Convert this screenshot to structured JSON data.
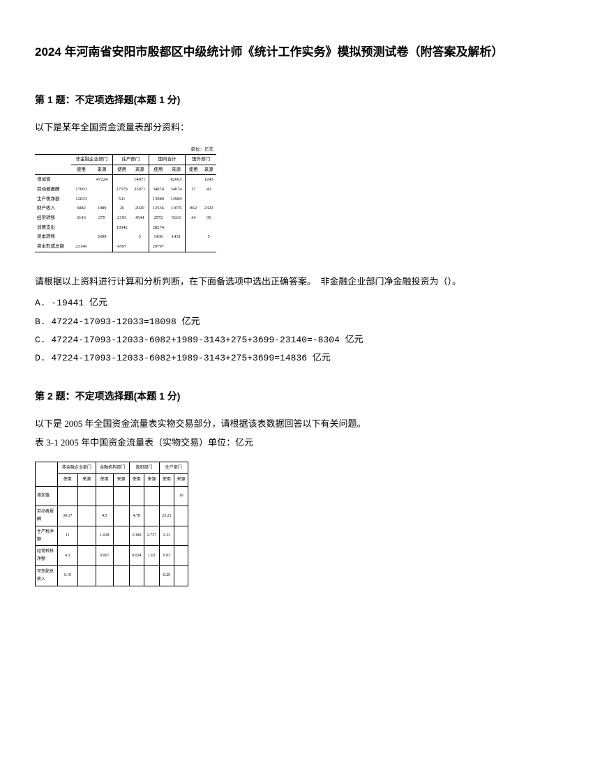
{
  "doc": {
    "title": "2024 年河南省安阳市殷都区中级统计师《统计工作实务》模拟预测试卷（附答案及解析）"
  },
  "q1": {
    "heading": "第 1 题：不定项选择题(本题 1 分)",
    "stem": "以下是某年全国资金流量表部分资料：",
    "prompt": "请根据以上资料进行计算和分析判断，在下面备选项中选出正确答案。　非金融企业部门净金融投资为（）。",
    "options": {
      "A": "A. -19441 亿元",
      "B": "B. 47224-17093-12033=18098 亿元",
      "C": "C. 47224-17093-12033-6082+1989-3143+275+3699-23140=-8304 亿元",
      "D": "D. 47224-17093-12033-6082+1989-3143+275+3699=14836 亿元"
    },
    "table": {
      "unit": "单位：亿元",
      "groups": [
        "非金融企业部门",
        "住户部门",
        "国内合计",
        "国外部门"
      ],
      "subcols": [
        "使用",
        "来源",
        "使用",
        "来源",
        "使用",
        "来源",
        "使用",
        "来源"
      ],
      "rows": [
        {
          "label": "增加值",
          "c": [
            "",
            "47224",
            "",
            "14071",
            "",
            "82663",
            "",
            "1243"
          ]
        },
        {
          "label": "劳动者报酬",
          "c": [
            "17093",
            "",
            "27579",
            "33071",
            "34074",
            "34074",
            "17",
            "43"
          ]
        },
        {
          "label": "生产税净额",
          "c": [
            "12033",
            "",
            "531",
            "",
            "13989",
            "13989",
            "",
            ""
          ]
        },
        {
          "label": "财产收入",
          "c": [
            "6082",
            "1989",
            "26",
            "2020",
            "12536",
            "11076",
            "862",
            "2322"
          ]
        },
        {
          "label": "经常转移",
          "c": [
            "3143",
            "275",
            "2193",
            "4544",
            "2572",
            "5163",
            "44",
            "35"
          ]
        },
        {
          "label": "消费支出",
          "c": [
            "",
            "",
            "18342",
            "",
            "28274",
            "",
            "",
            ""
          ]
        },
        {
          "label": "资本转移",
          "c": [
            "",
            "3699",
            "",
            "5",
            "1436",
            "1431",
            "",
            "5"
          ]
        },
        {
          "label": "资本形成总额",
          "c": [
            "23140",
            "",
            "4597",
            "",
            "29797",
            "",
            "",
            ""
          ]
        }
      ]
    }
  },
  "q2": {
    "heading": "第 2 题：不定项选择题(本题 1 分)",
    "stem1": "以下是 2005 年全国资金流量表实物交易部分，请根据该表数据回答以下有关问题。",
    "stem2": "表 3-1 2005 年中国资金流量表（实物交易）单位：亿元",
    "table": {
      "header_top": [
        "非金融企业部门",
        "金融机构部门",
        "政府部门",
        "住户部门"
      ],
      "header_sub": [
        "使用",
        "来源",
        "使用",
        "来源",
        "使用",
        "来源",
        "使用",
        "来源"
      ],
      "rowlabels": [
        "增加值",
        "劳动者报酬",
        "生产税净额",
        "经常转移净额",
        "可支配总收入"
      ],
      "cells": [
        [
          "",
          "",
          "",
          "",
          "",
          "",
          "",
          "10"
        ],
        [
          "30.17",
          "",
          "4.5",
          "",
          "4.78",
          "",
          "23.21",
          ""
        ],
        [
          "11",
          "",
          "1.028",
          "",
          "3.389",
          "2.737",
          "2.33",
          ""
        ],
        [
          "4.3",
          "",
          "0.067",
          "",
          "0.024",
          "1.02",
          "0.03",
          ""
        ],
        [
          "0.19",
          "",
          "",
          "",
          "",
          "",
          "0.29",
          ""
        ]
      ]
    }
  },
  "colors": {
    "text": "#000000",
    "background": "#ffffff",
    "border": "#000000"
  }
}
